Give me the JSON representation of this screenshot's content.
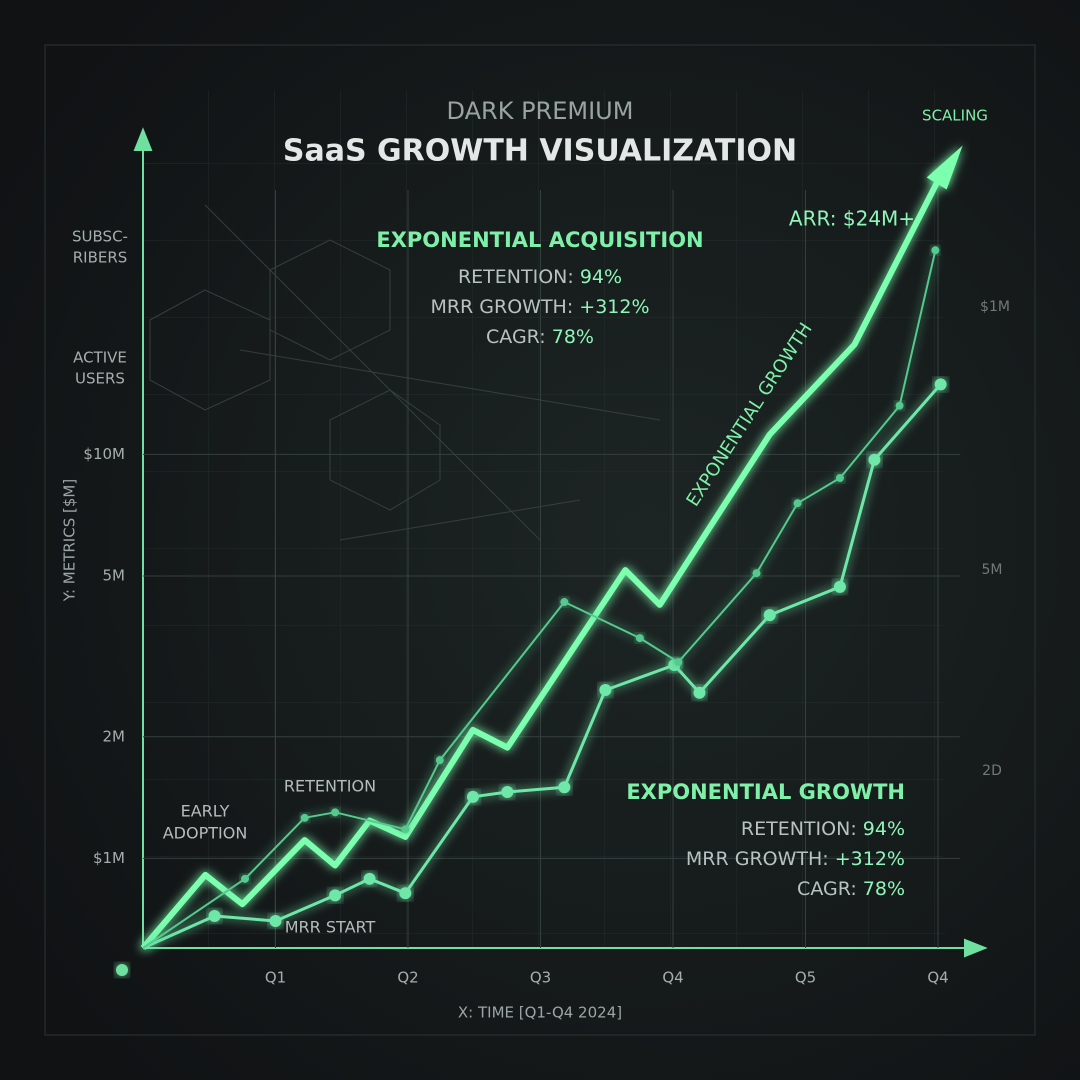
{
  "header": "DARK PREMIUM",
  "chart_data": {
    "type": "line",
    "title": "SaaS GROWTH VISUALIZATION",
    "x_label": "X: TIME [Q1-Q4 2024]",
    "y_label": "Y: METRICS [$M]",
    "yscale": "log",
    "grid": true,
    "xlim": [
      0,
      6.3
    ],
    "ylim": [
      0.6,
      60
    ],
    "xticks": [
      {
        "value": 1,
        "label": "Q1"
      },
      {
        "value": 2,
        "label": "Q2"
      },
      {
        "value": 3,
        "label": "Q3"
      },
      {
        "value": 4,
        "label": "Q4"
      },
      {
        "value": 5,
        "label": "Q5"
      },
      {
        "value": 6,
        "label": "Q4"
      }
    ],
    "yticks": [
      {
        "value": 1,
        "label": "$1M"
      },
      {
        "value": 2,
        "label": "2M"
      },
      {
        "value": 5,
        "label": "5M"
      },
      {
        "value": 10,
        "label": "$10M"
      }
    ],
    "series": [
      {
        "color": "#7dffb0",
        "x": [
          0,
          0.47,
          0.75,
          1.22,
          1.45,
          1.71,
          1.98,
          2.49,
          2.75,
          3.64,
          3.9,
          4.73,
          5.37,
          6.02
        ],
        "values": [
          0.6,
          0.91,
          0.77,
          1.11,
          0.96,
          1.24,
          1.13,
          2.08,
          1.88,
          5.17,
          4.24,
          11.2,
          18.7,
          49
        ]
      },
      {
        "color": "#6ee7a8",
        "x": [
          0,
          0.54,
          1.0,
          1.45,
          1.71,
          1.98,
          2.49,
          2.75,
          3.18,
          3.49,
          4.01,
          4.2,
          4.73,
          5.26,
          5.52,
          6.02
        ],
        "values": [
          0.6,
          0.72,
          0.7,
          0.81,
          0.89,
          0.82,
          1.42,
          1.46,
          1.5,
          2.61,
          3.01,
          2.57,
          4.0,
          4.7,
          9.7,
          14.9
        ]
      },
      {
        "color": "#55c98e",
        "x": [
          0,
          0.77,
          1.22,
          1.45,
          1.98,
          2.24,
          3.18,
          3.75,
          4.04,
          4.63,
          4.94,
          5.26,
          5.71,
          5.98
        ],
        "values": [
          0.6,
          0.89,
          1.26,
          1.3,
          1.18,
          1.75,
          4.31,
          3.51,
          3.06,
          5.08,
          7.57,
          8.74,
          13.2,
          32
        ]
      }
    ],
    "annotations": [
      "SCALING",
      "ARR: $24M+",
      "EXPONENTIAL GROWTH",
      "EARLY",
      "ADOPTION",
      "RETENTION",
      "MRR START",
      "SUBSC-",
      "RIBERS",
      "ACTIVE",
      "USERS",
      "$1M",
      "5M",
      "2D"
    ],
    "info_blocks": [
      {
        "heading": "EXPONENTIAL ACQUISITION",
        "lines": [
          {
            "label": "RETENTION:",
            "value": "94%"
          },
          {
            "label": "MRR GROWTH:",
            "value": "+312%"
          },
          {
            "label": "CAGR:",
            "value": "78%"
          }
        ]
      },
      {
        "heading": "EXPONENTIAL GROWTH",
        "lines": [
          {
            "label": "RETENTION:",
            "value": "94%"
          },
          {
            "label": "MRR GROWTH:",
            "value": "+312%"
          },
          {
            "label": "CAGR:",
            "value": "78%"
          }
        ]
      }
    ]
  }
}
